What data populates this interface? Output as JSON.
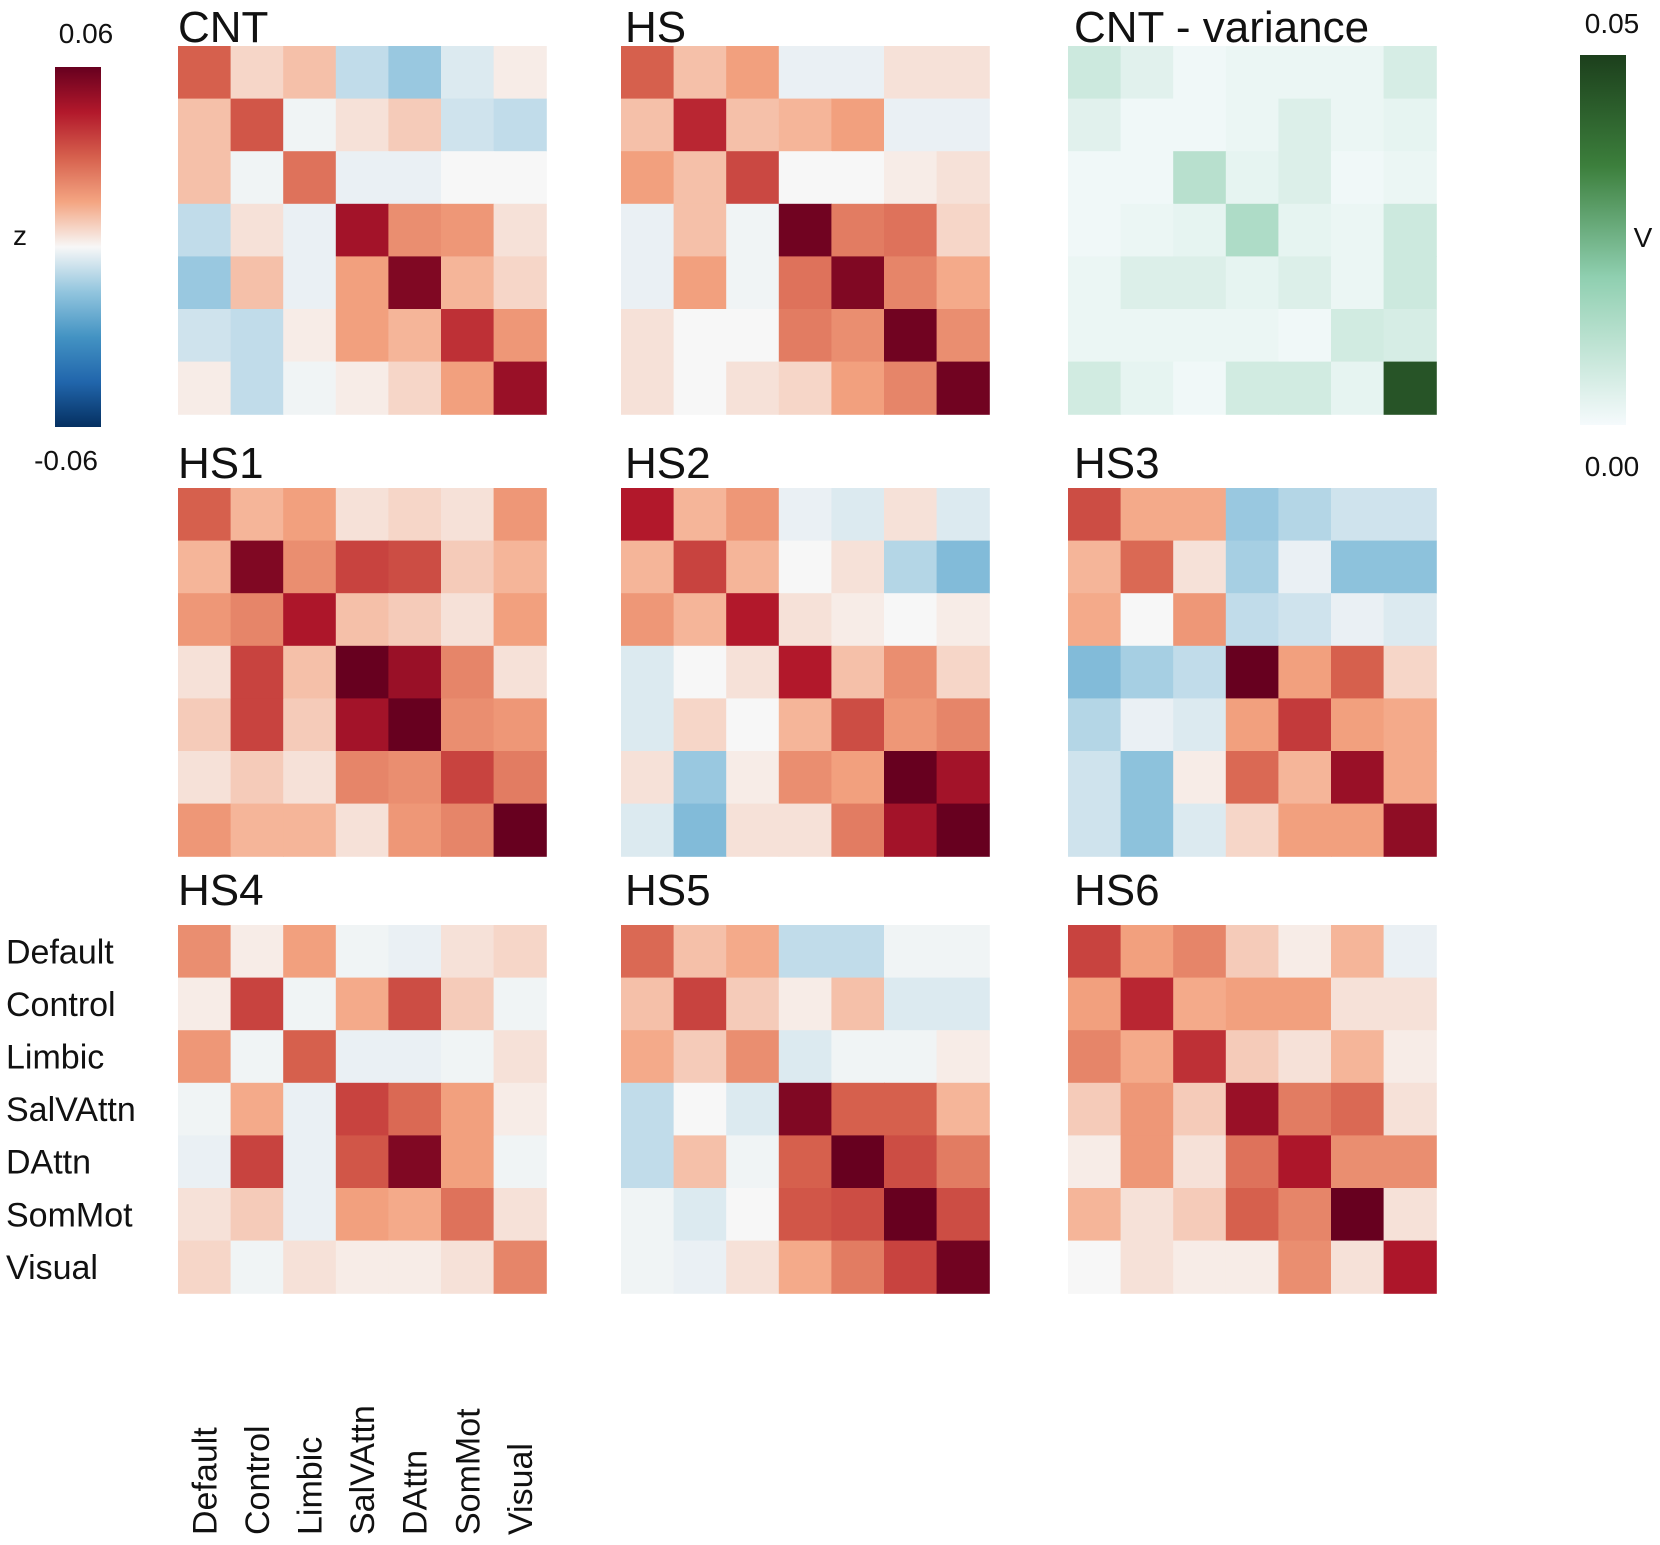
{
  "chart_data": {
    "type": "heatmap",
    "networks": [
      "Default",
      "Control",
      "Limbic",
      "SalVAttn",
      "DAttn",
      "SomMot",
      "Visual"
    ],
    "z_colorbar": {
      "label": "z",
      "max_label": "0.06",
      "min_label": "-0.06",
      "range": [
        -0.06,
        0.06
      ]
    },
    "v_colorbar": {
      "label": "V",
      "max_label": "0.05",
      "min_label": "0.00",
      "range": [
        0,
        0.05
      ]
    },
    "panels": [
      {
        "title": "CNT",
        "scale": "z",
        "values": [
          [
            0.03,
            0.006,
            0.01,
            -0.008,
            -0.014,
            -0.004,
            0.002
          ],
          [
            0.01,
            0.032,
            -0.001,
            0.004,
            0.008,
            -0.006,
            -0.008
          ],
          [
            0.01,
            -0.001,
            0.026,
            -0.002,
            -0.002,
            0.0,
            0.0
          ],
          [
            -0.008,
            0.004,
            -0.002,
            0.048,
            0.02,
            0.018,
            0.004
          ],
          [
            -0.014,
            0.01,
            -0.002,
            0.016,
            0.055,
            0.012,
            0.006
          ],
          [
            -0.006,
            -0.008,
            0.002,
            0.016,
            0.012,
            0.04,
            0.018
          ],
          [
            0.002,
            -0.008,
            -0.001,
            0.002,
            0.006,
            0.016,
            0.05
          ]
        ]
      },
      {
        "title": "HS",
        "scale": "z",
        "values": [
          [
            0.03,
            0.01,
            0.016,
            -0.002,
            -0.002,
            0.004,
            0.004
          ],
          [
            0.01,
            0.042,
            0.01,
            0.012,
            0.016,
            -0.002,
            -0.002
          ],
          [
            0.016,
            0.01,
            0.035,
            0.0,
            0.0,
            0.002,
            0.004
          ],
          [
            -0.002,
            0.01,
            -0.001,
            0.058,
            0.024,
            0.026,
            0.006
          ],
          [
            -0.002,
            0.016,
            -0.001,
            0.026,
            0.055,
            0.022,
            0.014
          ],
          [
            0.004,
            0.0,
            0.0,
            0.024,
            0.02,
            0.058,
            0.02
          ],
          [
            0.004,
            0.0,
            0.004,
            0.006,
            0.016,
            0.022,
            0.058
          ]
        ]
      },
      {
        "title": "CNT - variance",
        "scale": "v",
        "values": [
          [
            0.008,
            0.004,
            0.001,
            0.002,
            0.002,
            0.002,
            0.006
          ],
          [
            0.004,
            0.001,
            0.001,
            0.002,
            0.005,
            0.002,
            0.003
          ],
          [
            0.001,
            0.001,
            0.012,
            0.003,
            0.005,
            0.001,
            0.002
          ],
          [
            0.001,
            0.002,
            0.003,
            0.014,
            0.003,
            0.002,
            0.008
          ],
          [
            0.002,
            0.005,
            0.005,
            0.003,
            0.005,
            0.002,
            0.008
          ],
          [
            0.002,
            0.002,
            0.002,
            0.002,
            0.001,
            0.007,
            0.006
          ],
          [
            0.007,
            0.003,
            0.001,
            0.007,
            0.007,
            0.003,
            0.045
          ]
        ]
      },
      {
        "title": "HS1",
        "scale": "z",
        "values": [
          [
            0.03,
            0.012,
            0.016,
            0.004,
            0.006,
            0.004,
            0.018
          ],
          [
            0.012,
            0.055,
            0.02,
            0.036,
            0.034,
            0.008,
            0.012
          ],
          [
            0.018,
            0.022,
            0.046,
            0.01,
            0.008,
            0.004,
            0.016
          ],
          [
            0.004,
            0.036,
            0.01,
            0.065,
            0.05,
            0.022,
            0.004
          ],
          [
            0.008,
            0.036,
            0.008,
            0.048,
            0.06,
            0.02,
            0.018
          ],
          [
            0.004,
            0.008,
            0.004,
            0.022,
            0.02,
            0.036,
            0.024
          ],
          [
            0.018,
            0.012,
            0.012,
            0.004,
            0.018,
            0.022,
            0.065
          ]
        ]
      },
      {
        "title": "HS2",
        "scale": "z",
        "values": [
          [
            0.045,
            0.012,
            0.018,
            -0.002,
            -0.004,
            0.004,
            -0.004
          ],
          [
            0.012,
            0.036,
            0.012,
            0.0,
            0.004,
            -0.01,
            -0.018
          ],
          [
            0.018,
            0.012,
            0.045,
            0.004,
            0.002,
            0.0,
            0.002
          ],
          [
            -0.004,
            0.0,
            0.004,
            0.045,
            0.01,
            0.02,
            0.006
          ],
          [
            -0.004,
            0.006,
            0.0,
            0.012,
            0.034,
            0.018,
            0.022
          ],
          [
            0.004,
            -0.014,
            0.002,
            0.02,
            0.016,
            0.065,
            0.048
          ],
          [
            -0.004,
            -0.018,
            0.004,
            0.004,
            0.024,
            0.048,
            0.065
          ]
        ]
      },
      {
        "title": "HS3",
        "scale": "z",
        "values": [
          [
            0.034,
            0.014,
            0.014,
            -0.014,
            -0.01,
            -0.006,
            -0.006
          ],
          [
            0.012,
            0.028,
            0.004,
            -0.012,
            -0.002,
            -0.016,
            -0.016
          ],
          [
            0.014,
            0.0,
            0.018,
            -0.008,
            -0.006,
            -0.002,
            -0.004
          ],
          [
            -0.018,
            -0.012,
            -0.008,
            0.06,
            0.016,
            0.03,
            0.006
          ],
          [
            -0.01,
            -0.002,
            -0.004,
            0.016,
            0.038,
            0.016,
            0.014
          ],
          [
            -0.006,
            -0.016,
            0.002,
            0.028,
            0.012,
            0.05,
            0.014
          ],
          [
            -0.006,
            -0.016,
            -0.004,
            0.006,
            0.016,
            0.016,
            0.052
          ]
        ]
      },
      {
        "title": "HS4",
        "scale": "z",
        "values": [
          [
            0.02,
            0.002,
            0.016,
            -0.001,
            -0.002,
            0.004,
            0.006
          ],
          [
            0.002,
            0.036,
            -0.001,
            0.014,
            0.034,
            0.008,
            -0.001
          ],
          [
            0.018,
            -0.001,
            0.03,
            -0.002,
            -0.002,
            -0.001,
            0.004
          ],
          [
            -0.001,
            0.014,
            -0.002,
            0.036,
            0.028,
            0.016,
            0.002
          ],
          [
            -0.002,
            0.036,
            -0.002,
            0.032,
            0.055,
            0.016,
            -0.001
          ],
          [
            0.004,
            0.008,
            -0.002,
            0.016,
            0.014,
            0.026,
            0.004
          ],
          [
            0.006,
            -0.001,
            0.004,
            0.002,
            0.002,
            0.004,
            0.022
          ]
        ]
      },
      {
        "title": "HS5",
        "scale": "z",
        "values": [
          [
            0.028,
            0.01,
            0.014,
            -0.008,
            -0.008,
            -0.001,
            -0.001
          ],
          [
            0.01,
            0.036,
            0.008,
            0.002,
            0.01,
            -0.004,
            -0.004
          ],
          [
            0.014,
            0.008,
            0.02,
            -0.004,
            -0.001,
            -0.001,
            0.002
          ],
          [
            -0.008,
            0.0,
            -0.004,
            0.055,
            0.03,
            0.03,
            0.012
          ],
          [
            -0.008,
            0.01,
            -0.001,
            0.03,
            0.062,
            0.034,
            0.024
          ],
          [
            -0.001,
            -0.004,
            0.0,
            0.032,
            0.034,
            0.065,
            0.034
          ],
          [
            -0.001,
            -0.002,
            0.004,
            0.014,
            0.024,
            0.036,
            0.058
          ]
        ]
      },
      {
        "title": "HS6",
        "scale": "z",
        "values": [
          [
            0.036,
            0.016,
            0.022,
            0.008,
            0.002,
            0.012,
            -0.002
          ],
          [
            0.016,
            0.042,
            0.014,
            0.016,
            0.016,
            0.004,
            0.004
          ],
          [
            0.022,
            0.014,
            0.04,
            0.008,
            0.004,
            0.012,
            0.002
          ],
          [
            0.008,
            0.018,
            0.008,
            0.05,
            0.024,
            0.028,
            0.004
          ],
          [
            0.002,
            0.018,
            0.004,
            0.026,
            0.046,
            0.02,
            0.02
          ],
          [
            0.012,
            0.004,
            0.008,
            0.03,
            0.022,
            0.065,
            0.004
          ],
          [
            0.0,
            0.004,
            0.002,
            0.002,
            0.02,
            0.004,
            0.046
          ]
        ]
      }
    ]
  }
}
